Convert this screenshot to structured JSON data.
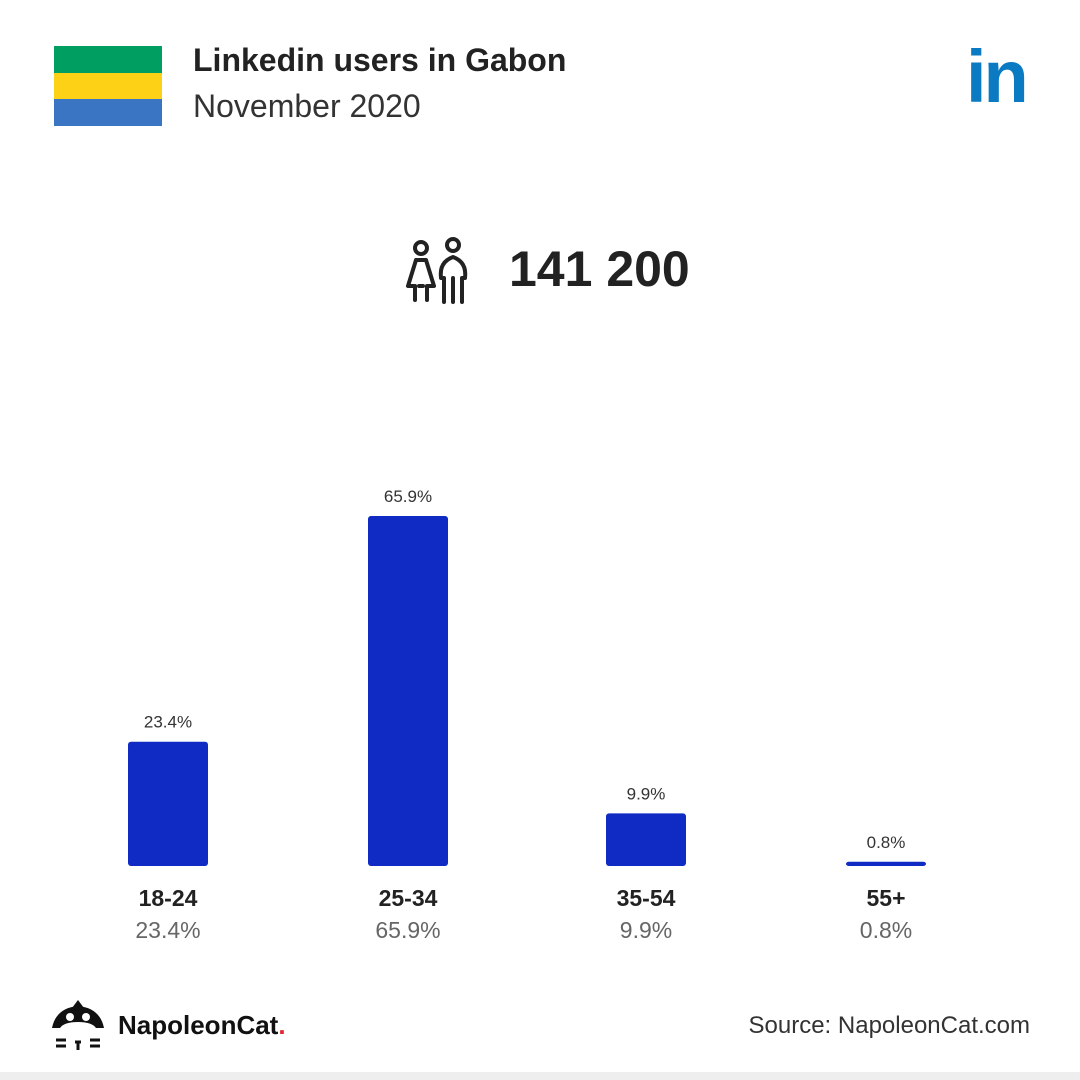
{
  "header": {
    "title": "Linkedin users in Gabon",
    "subtitle": "November 2020",
    "logo_text": "in",
    "logo_color": "#0a7ac2",
    "flag_colors": [
      "#009e60",
      "#fcd116",
      "#3a75c4"
    ]
  },
  "total": {
    "icon": "people-icon",
    "value": "141 200"
  },
  "chart_data": {
    "type": "bar",
    "categories": [
      "18-24",
      "25-34",
      "35-54",
      "55+"
    ],
    "values": [
      23.4,
      65.9,
      9.9,
      0.8
    ],
    "value_labels": [
      "23.4%",
      "65.9%",
      "9.9%",
      "0.8%"
    ],
    "title": "",
    "xlabel": "",
    "ylabel": "",
    "ylim": [
      0,
      65.9
    ],
    "grid": false,
    "bar_color": "#0f2bc3"
  },
  "footer": {
    "brand": "NapoleonCat",
    "brand_dot": ".",
    "source": "Source: NapoleonCat.com"
  }
}
